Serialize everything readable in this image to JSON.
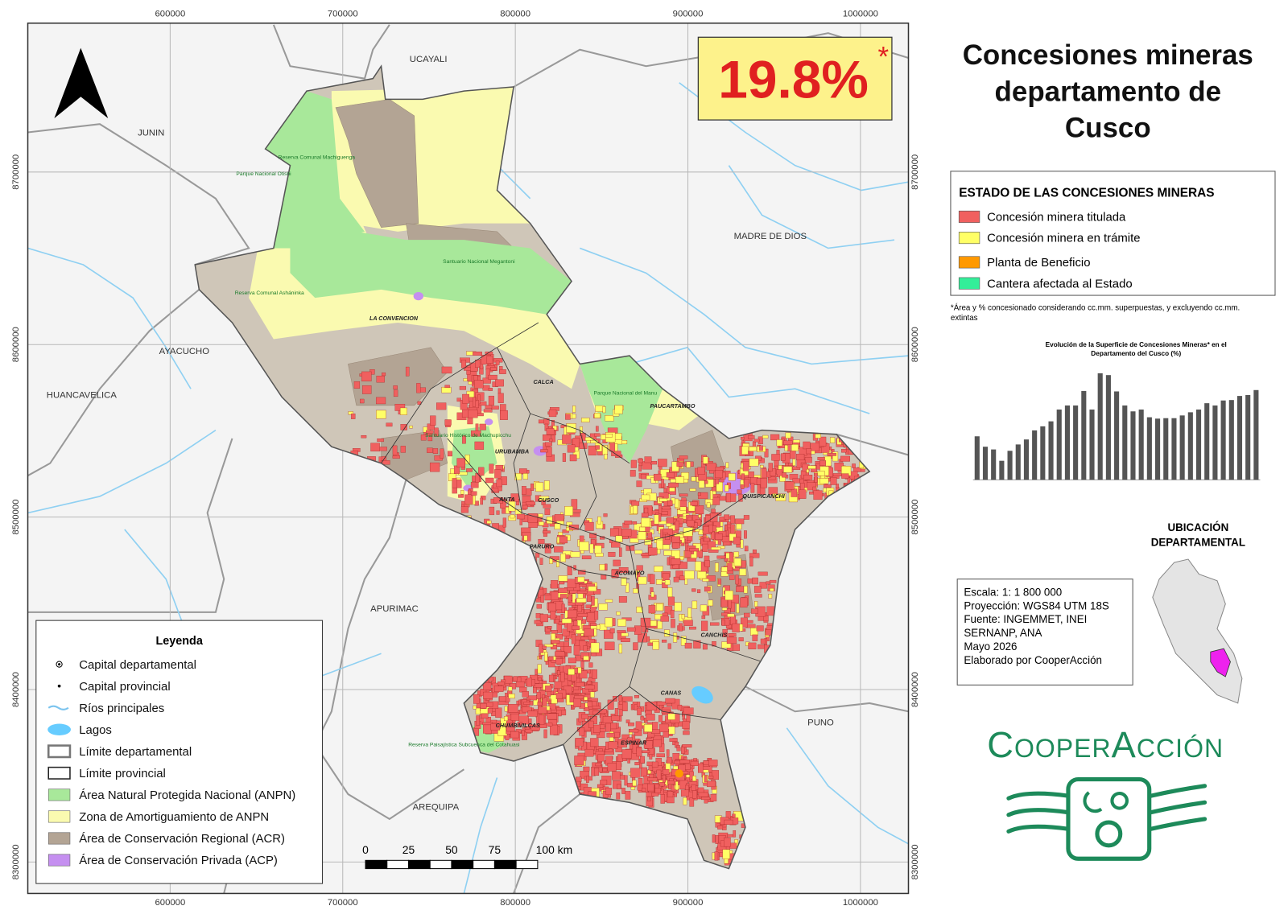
{
  "map": {
    "title_lines": [
      "Concesiones mineras",
      "departamento de",
      "Cusco"
    ],
    "highlight": {
      "text": "19.8%",
      "mark": "*"
    },
    "xlim": [
      517500,
      1027800
    ],
    "ylim": [
      8281800,
      8786300
    ],
    "xticks": [
      600000,
      700000,
      800000,
      900000,
      1000000
    ],
    "yticks": [
      8300000,
      8400000,
      8500000,
      8600000,
      8700000
    ],
    "region_labels": [
      "UCAYALI",
      "JUNIN",
      "MADRE DE DIOS",
      "AYACUCHO",
      "HUANCAVELICA",
      "APURIMAC",
      "AREQUIPA",
      "PUNO"
    ],
    "province_labels": [
      "LA CONVENCION",
      "CALCA",
      "PAUCARTAMBO",
      "URUBAMBA",
      "ANTA",
      "CUSCO",
      "QUISPICANCHI",
      "PARURO",
      "ACOMAYO",
      "CANCHIS",
      "CANAS",
      "CHUMBIVILCAS",
      "ESPINAR"
    ],
    "area_labels": [
      "Reserva Comunal Machiguenga",
      "Parque Nacional Otishi",
      "Santuario Nacional Megantoni",
      "Reserva Comunal Asháninka",
      "Parque Nacional del Manu",
      "Santuario Histórico de Machupicchu",
      "Reserva Paisajística Subcuenca del Cotahuasi"
    ]
  },
  "legend": {
    "title": "Leyenda",
    "items": [
      {
        "label": "Capital departamental",
        "color": "#000000"
      },
      {
        "label": "Capital provincial",
        "color": "#000000"
      },
      {
        "label": "Ríos principales",
        "color": "#7cc4ee"
      },
      {
        "label": "Lagos",
        "color": "#66ccff"
      },
      {
        "label": "Límite departamental",
        "color": "#777777"
      },
      {
        "label": "Límite provincial",
        "color": "#222222"
      },
      {
        "label": "Área Natural Protegida Nacional (ANPN)",
        "color": "#a8e89a"
      },
      {
        "label": "Zona de Amortiguamiento de ANPN",
        "color": "#fafab0"
      },
      {
        "label": "Área de Conservación Regional (ACR)",
        "color": "#b3a494"
      },
      {
        "label": "Área de Conservación Privada (ACP)",
        "color": "#c58ff0"
      }
    ]
  },
  "scale_bar": {
    "labels": [
      "0",
      "25",
      "50",
      "75",
      "100 km"
    ]
  },
  "status_legend": {
    "title": "ESTADO DE LAS CONCESIONES MINERAS",
    "items": [
      {
        "label": "Concesión minera titulada",
        "color": "#f0605f"
      },
      {
        "label": "Concesión minera en trámite",
        "color": "#ffff66"
      },
      {
        "label": "Planta de Beneficio",
        "color": "#ff9900"
      },
      {
        "label": "Cantera afectada al Estado",
        "color": "#33ee99"
      }
    ]
  },
  "footnote": [
    "*Área y % concesionado considerando cc.mm. superpuestas, y excluyendo cc.mm.",
    "extintas"
  ],
  "chart_data": {
    "type": "bar",
    "title_lines": [
      "Evolución de la Superficie de Concesiones Mineras* en el",
      "Departamento del Cusco (%)"
    ],
    "categories": [
      null,
      null,
      null,
      null,
      null,
      null,
      null,
      null,
      null,
      null,
      null,
      null,
      null,
      null,
      null,
      null,
      null,
      null,
      null,
      null,
      null,
      null,
      null,
      null,
      null,
      null,
      null,
      null,
      null,
      null,
      null,
      null,
      null,
      null,
      null
    ],
    "values": [
      9.6,
      7.3,
      6.7,
      4.2,
      6.4,
      7.8,
      8.9,
      10.9,
      11.8,
      12.9,
      15.5,
      16.4,
      16.4,
      19.6,
      15.5,
      23.5,
      23.1,
      19.5,
      16.4,
      15.1,
      15.5,
      13.8,
      13.5,
      13.6,
      13.6,
      14.2,
      14.9,
      15.5,
      16.9,
      16.4,
      17.5,
      17.6,
      18.5,
      18.7,
      19.8
    ],
    "color": "#555555",
    "ylim": [
      0,
      25
    ]
  },
  "location": {
    "title_lines": [
      "UBICACIÓN",
      "DEPARTAMENTAL"
    ]
  },
  "info": {
    "lines": [
      "Escala: 1: 1 800 000",
      "Proyección: WGS84 UTM 18S",
      "Fuente: INGEMMET, INEI",
      "SERNANP, ANA",
      "Mayo 2026",
      "Elaborado por CooperAcción"
    ]
  },
  "logo": {
    "text": "CooperAcción"
  }
}
